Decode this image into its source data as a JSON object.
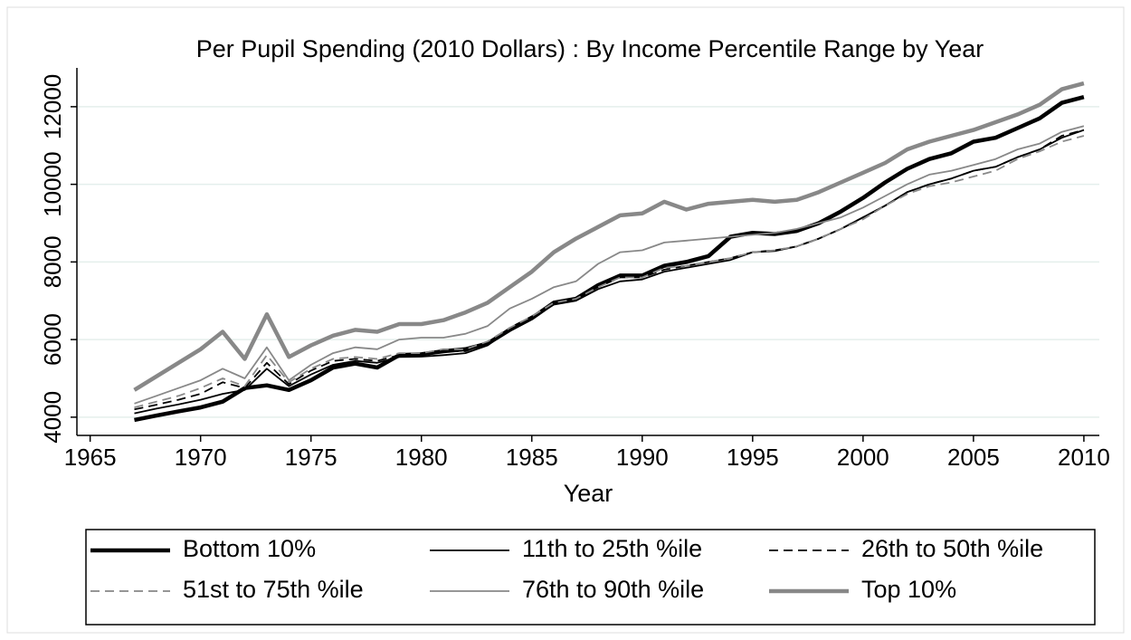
{
  "chart_data": {
    "type": "line",
    "title": "Per Pupil Spending (2010 Dollars) : By Income Percentile Range by Year",
    "x_label": "Year",
    "x": [
      1967,
      1968,
      1969,
      1970,
      1971,
      1972,
      1973,
      1974,
      1975,
      1976,
      1977,
      1978,
      1979,
      1980,
      1981,
      1982,
      1983,
      1984,
      1985,
      1986,
      1987,
      1988,
      1989,
      1990,
      1991,
      1992,
      1993,
      1994,
      1995,
      1996,
      1997,
      1998,
      1999,
      2000,
      2001,
      2002,
      2003,
      2004,
      2005,
      2006,
      2007,
      2008,
      2009,
      2010
    ],
    "series": [
      {
        "name": "Bottom 10%",
        "color": "#000000",
        "width": 4.5,
        "dash": false,
        "values": [
          3930,
          4040,
          4150,
          4250,
          4400,
          4750,
          4820,
          4700,
          4950,
          5280,
          5380,
          5280,
          5600,
          5620,
          5700,
          5750,
          5900,
          6250,
          6550,
          6950,
          7050,
          7400,
          7650,
          7650,
          7900,
          8000,
          8150,
          8650,
          8750,
          8720,
          8800,
          9000,
          9300,
          9650,
          10050,
          10400,
          10650,
          10800,
          11100,
          11200,
          11450,
          11700,
          12100,
          12250
        ]
      },
      {
        "name": "11th to 25th %ile",
        "color": "#000000",
        "width": 1.8,
        "dash": false,
        "values": [
          4100,
          4220,
          4330,
          4450,
          4600,
          4700,
          5250,
          4800,
          5100,
          5350,
          5450,
          5400,
          5550,
          5560,
          5600,
          5650,
          5850,
          6250,
          6550,
          6900,
          7000,
          7300,
          7500,
          7550,
          7750,
          7850,
          7950,
          8050,
          8250,
          8280,
          8400,
          8600,
          8850,
          9150,
          9450,
          9800,
          10000,
          10150,
          10350,
          10450,
          10700,
          10900,
          11200,
          11400
        ]
      },
      {
        "name": "26th to 50th %ile",
        "color": "#000000",
        "width": 1.8,
        "dash": true,
        "values": [
          4200,
          4320,
          4450,
          4600,
          4900,
          4750,
          5400,
          4850,
          5200,
          5450,
          5500,
          5450,
          5600,
          5620,
          5700,
          5700,
          5900,
          6300,
          6600,
          6950,
          7050,
          7350,
          7600,
          7600,
          7800,
          7900,
          8000,
          8100,
          8250,
          8300,
          8400,
          8600,
          8850,
          9150,
          9450,
          9800,
          10000,
          10150,
          10350,
          10450,
          10700,
          10900,
          11250,
          11400
        ]
      },
      {
        "name": "51st to 75th %ile",
        "color": "#888888",
        "width": 1.8,
        "dash": true,
        "values": [
          4250,
          4400,
          4550,
          4750,
          5000,
          4800,
          5600,
          4900,
          5250,
          5500,
          5550,
          5500,
          5650,
          5650,
          5750,
          5750,
          5950,
          6300,
          6600,
          6950,
          7050,
          7350,
          7600,
          7600,
          7850,
          7900,
          8000,
          8100,
          8250,
          8300,
          8400,
          8600,
          8850,
          9100,
          9450,
          9750,
          9950,
          10050,
          10200,
          10350,
          10650,
          10850,
          11100,
          11250
        ]
      },
      {
        "name": "76th to 90th %ile",
        "color": "#888888",
        "width": 1.8,
        "dash": false,
        "values": [
          4350,
          4550,
          4750,
          4950,
          5250,
          5000,
          5800,
          4950,
          5350,
          5650,
          5800,
          5750,
          6000,
          6050,
          6050,
          6150,
          6350,
          6800,
          7050,
          7350,
          7500,
          7950,
          8250,
          8300,
          8500,
          8550,
          8600,
          8650,
          8700,
          8750,
          8850,
          9000,
          9150,
          9400,
          9700,
          10000,
          10250,
          10350,
          10500,
          10650,
          10900,
          11050,
          11350,
          11500
        ]
      },
      {
        "name": "Top 10%",
        "color": "#888888",
        "width": 4.5,
        "dash": false,
        "values": [
          4700,
          5050,
          5400,
          5750,
          6200,
          5500,
          6650,
          5550,
          5850,
          6100,
          6250,
          6200,
          6400,
          6400,
          6500,
          6700,
          6950,
          7350,
          7750,
          8250,
          8600,
          8900,
          9200,
          9250,
          9550,
          9350,
          9500,
          9550,
          9600,
          9550,
          9600,
          9800,
          10050,
          10300,
          10550,
          10900,
          11100,
          11250,
          11400,
          11600,
          11800,
          12050,
          12450,
          12600
        ]
      }
    ],
    "xlim": [
      1964.4,
      2010.7
    ],
    "xticks": [
      1965,
      1970,
      1975,
      1980,
      1985,
      1990,
      1995,
      2000,
      2005,
      2010
    ],
    "ylim": [
      3530,
      13000
    ],
    "yticks": [
      4000,
      6000,
      8000,
      10000,
      12000
    ],
    "grid": true,
    "legend_position": "bottom"
  }
}
